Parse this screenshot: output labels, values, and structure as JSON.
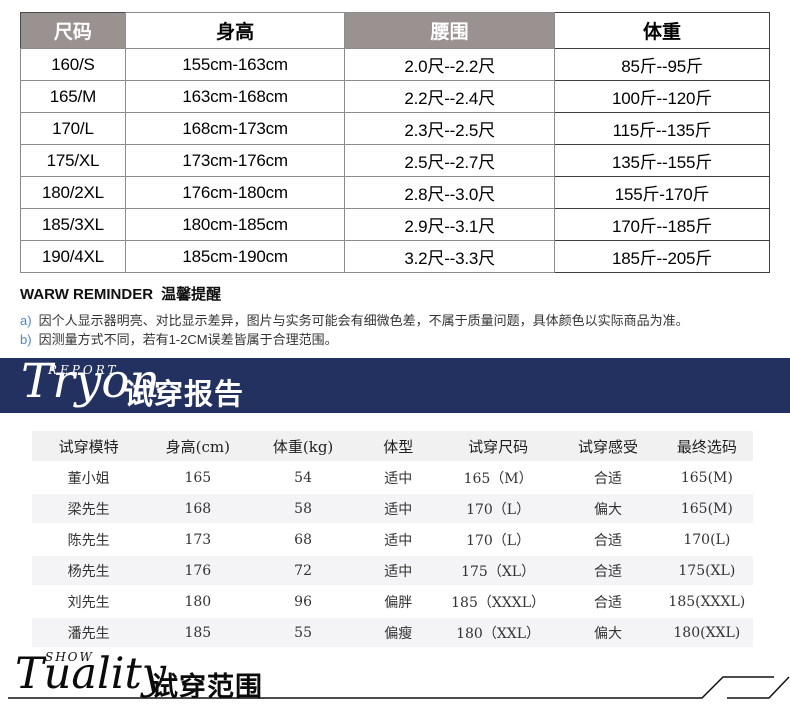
{
  "size_table": {
    "headers": [
      {
        "label": "尺码",
        "variant": "gray"
      },
      {
        "label": "身高",
        "variant": "white"
      },
      {
        "label": "腰围",
        "variant": "gray"
      },
      {
        "label": "体重",
        "variant": "white"
      }
    ],
    "rows": [
      [
        "160/S",
        "155cm-163cm",
        "2.0尺--2.2尺",
        "85斤--95斤"
      ],
      [
        "165/M",
        "163cm-168cm",
        "2.2尺--2.4尺",
        "100斤--120斤"
      ],
      [
        "170/L",
        "168cm-173cm",
        "2.3尺--2.5尺",
        "115斤--135斤"
      ],
      [
        "175/XL",
        "173cm-176cm",
        "2.5尺--2.7尺",
        "135斤--155斤"
      ],
      [
        "180/2XL",
        "176cm-180cm",
        "2.8尺--3.0尺",
        "155斤-170斤"
      ],
      [
        "185/3XL",
        "180cm-185cm",
        "2.9尺--3.1尺",
        "170斤--185斤"
      ],
      [
        "190/4XL",
        "185cm-190cm",
        "3.2尺--3.3尺",
        "185斤--205斤"
      ]
    ]
  },
  "reminder": {
    "title_en": "WARW REMINDER",
    "title_cn": "温馨提醒",
    "notes": [
      {
        "marker": "a)",
        "text": "因个人显示器明亮、对比显示差异，图片与实务可能会有细微色差，不属于质量问题，具体颜色以实际商品为准。"
      },
      {
        "marker": "b)",
        "text": "因测量方式不同，若有1-2CM误差皆属于合理范围。"
      }
    ]
  },
  "report_banner": {
    "word": "Tryon",
    "overline": "REPORT",
    "title_cn": "试穿报告",
    "bg_color": "#223160",
    "text_color": "#ffffff"
  },
  "report_table": {
    "headers": [
      "试穿模特",
      "身高(cm)",
      "体重(kg)",
      "体型",
      "试穿尺码",
      "试穿感受",
      "最终选码"
    ],
    "rows": [
      [
        "董小姐",
        "165",
        "54",
        "适中",
        "165（M）",
        "合适",
        "165(M)"
      ],
      [
        "梁先生",
        "168",
        "58",
        "适中",
        "170（L）",
        "偏大",
        "165(M)"
      ],
      [
        "陈先生",
        "173",
        "68",
        "适中",
        "170（L）",
        "合适",
        "170(L)"
      ],
      [
        "杨先生",
        "176",
        "72",
        "适中",
        "175（XL）",
        "合适",
        "175(XL)"
      ],
      [
        "刘先生",
        "180",
        "96",
        "偏胖",
        "185（XXXL）",
        "合适",
        "185(XXXL)"
      ],
      [
        "潘先生",
        "185",
        "55",
        "偏瘦",
        "180（XXL）",
        "偏大",
        "180(XXL)"
      ]
    ]
  },
  "show_footer": {
    "word": "Tuality",
    "overline": "SHOW",
    "title_cn": "试穿范围"
  },
  "colors": {
    "size_header_gray": "#9a9290",
    "table_border_gray": "#8c8c8c",
    "table_border_dark": "#3f3f3f",
    "note_marker_blue": "#4d86c6",
    "banner_navy": "#223160",
    "report_header_bg": "#f1f1f2",
    "report_row_alt": "#f4f4f6"
  }
}
